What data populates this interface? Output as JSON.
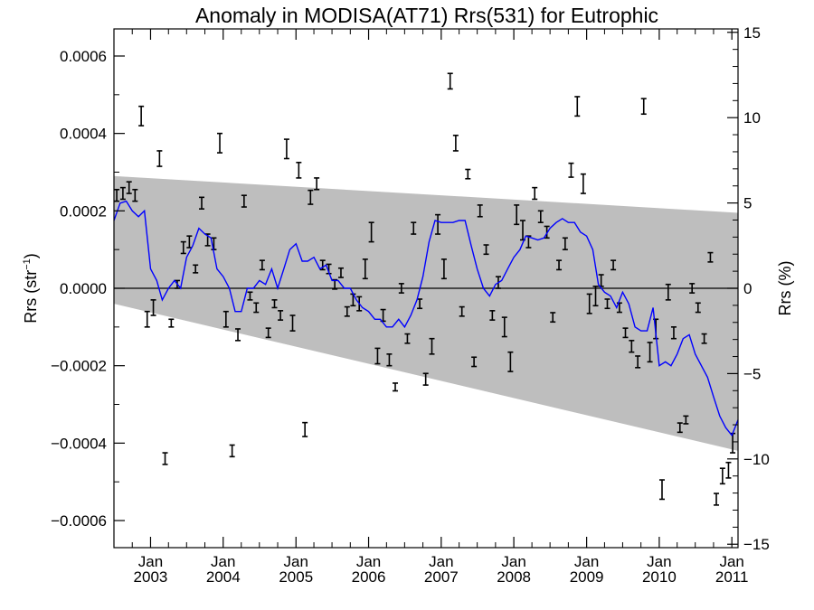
{
  "chart_data": {
    "type": "scatter",
    "title": "Anomaly in MODISA(AT71) Rrs(531) for Eutrophic",
    "ylabel_left": "Rrs (str",
    "ylabel_left_sup": "−1",
    "ylabel_left_end": ")",
    "ylabel_right": "Rrs (%)",
    "x_range": [
      "2002-07-01",
      "2011-02-01"
    ],
    "ylim_left": [
      -0.00067,
      0.00067
    ],
    "ylim_right": [
      -15.2,
      15.2
    ],
    "left_ticks": [
      {
        "value": 0.0006,
        "label": "0.0006"
      },
      {
        "value": 0.0004,
        "label": "0.0004"
      },
      {
        "value": 0.0002,
        "label": "0.0002"
      },
      {
        "value": 0.0,
        "label": "0.0000"
      },
      {
        "value": -0.0002,
        "label": "−0.0002"
      },
      {
        "value": -0.0004,
        "label": "−0.0004"
      },
      {
        "value": -0.0006,
        "label": "−0.0006"
      }
    ],
    "right_ticks": [
      {
        "value": 15,
        "label": "15"
      },
      {
        "value": 10,
        "label": "10"
      },
      {
        "value": 5,
        "label": "5"
      },
      {
        "value": 0,
        "label": "0"
      },
      {
        "value": -5,
        "label": "−5"
      },
      {
        "value": -10,
        "label": "−10"
      },
      {
        "value": -15,
        "label": "−15"
      }
    ],
    "x_ticks": [
      {
        "date": "2003-01-01",
        "month": "Jan",
        "year": "2003"
      },
      {
        "date": "2004-01-01",
        "month": "Jan",
        "year": "2004"
      },
      {
        "date": "2005-01-01",
        "month": "Jan",
        "year": "2005"
      },
      {
        "date": "2006-01-01",
        "month": "Jan",
        "year": "2006"
      },
      {
        "date": "2007-01-01",
        "month": "Jan",
        "year": "2007"
      },
      {
        "date": "2008-01-01",
        "month": "Jan",
        "year": "2008"
      },
      {
        "date": "2009-01-01",
        "month": "Jan",
        "year": "2009"
      },
      {
        "date": "2010-01-01",
        "month": "Jan",
        "year": "2010"
      },
      {
        "date": "2011-01-01",
        "month": "Jan",
        "year": "2011"
      }
    ],
    "confidence_band": {
      "color": "#bebebe",
      "upper": [
        [
          "2002-07-01",
          0.00029
        ],
        [
          "2011-02-01",
          0.000195
        ]
      ],
      "lower": [
        [
          "2002-07-01",
          -4e-05
        ],
        [
          "2011-02-01",
          -0.00042
        ]
      ]
    },
    "zero_line": 0,
    "observations": {
      "color": "#000000",
      "points": [
        [
          "2002-07-15",
          0.00024,
          1.5e-05
        ],
        [
          "2002-08-15",
          0.000245,
          1.5e-05
        ],
        [
          "2002-09-15",
          0.00026,
          1.5e-05
        ],
        [
          "2002-10-15",
          0.00024,
          1.5e-05
        ],
        [
          "2002-11-15",
          0.000445,
          2.5e-05
        ],
        [
          "2002-12-15",
          -8e-05,
          2e-05
        ],
        [
          "2003-01-15",
          -5e-05,
          2e-05
        ],
        [
          "2003-02-15",
          0.000335,
          2e-05
        ],
        [
          "2003-03-15",
          -0.00044,
          1.5e-05
        ],
        [
          "2003-04-15",
          -9e-05,
          1e-05
        ],
        [
          "2003-05-15",
          1e-05,
          1e-05
        ],
        [
          "2003-06-15",
          0.000105,
          1.5e-05
        ],
        [
          "2003-07-15",
          0.00012,
          1.5e-05
        ],
        [
          "2003-08-15",
          5e-05,
          1e-05
        ],
        [
          "2003-09-15",
          0.00022,
          1.5e-05
        ],
        [
          "2003-10-15",
          0.000125,
          1.5e-05
        ],
        [
          "2003-11-15",
          0.000115,
          1.5e-05
        ],
        [
          "2003-12-15",
          0.000375,
          2.5e-05
        ],
        [
          "2004-01-15",
          -8e-05,
          2e-05
        ],
        [
          "2004-02-15",
          -0.00042,
          1.5e-05
        ],
        [
          "2004-03-15",
          -0.00012,
          1.5e-05
        ],
        [
          "2004-04-15",
          0.000225,
          1.5e-05
        ],
        [
          "2004-05-15",
          -2e-05,
          1e-05
        ],
        [
          "2004-06-15",
          -5e-05,
          1.2e-05
        ],
        [
          "2004-07-15",
          6e-05,
          1.2e-05
        ],
        [
          "2004-08-15",
          -0.000115,
          1.2e-05
        ],
        [
          "2004-09-15",
          -4e-05,
          1e-05
        ],
        [
          "2004-10-15",
          -7e-05,
          1.2e-05
        ],
        [
          "2004-11-15",
          0.00036,
          2.5e-05
        ],
        [
          "2004-12-15",
          -9e-05,
          2e-05
        ],
        [
          "2005-01-15",
          0.000305,
          2e-05
        ],
        [
          "2005-02-15",
          -0.000365,
          1.8e-05
        ],
        [
          "2005-03-15",
          0.000235,
          1.8e-05
        ],
        [
          "2005-04-15",
          0.00027,
          1.5e-05
        ],
        [
          "2005-05-15",
          6e-05,
          1.2e-05
        ],
        [
          "2005-06-15",
          5e-05,
          1.2e-05
        ],
        [
          "2005-07-15",
          1e-05,
          1.2e-05
        ],
        [
          "2005-08-15",
          4e-05,
          1.2e-05
        ],
        [
          "2005-09-15",
          -6e-05,
          1.2e-05
        ],
        [
          "2005-10-15",
          -3e-05,
          1.5e-05
        ],
        [
          "2005-11-15",
          -4e-05,
          1.8e-05
        ],
        [
          "2005-12-15",
          5e-05,
          2.5e-05
        ],
        [
          "2006-01-15",
          0.000145,
          2.5e-05
        ],
        [
          "2006-02-15",
          -0.000175,
          2e-05
        ],
        [
          "2006-03-15",
          -7e-05,
          1.5e-05
        ],
        [
          "2006-04-15",
          -0.000185,
          1.5e-05
        ],
        [
          "2006-05-15",
          -0.000255,
          1e-05
        ],
        [
          "2006-06-15",
          0.0,
          1.2e-05
        ],
        [
          "2006-07-15",
          -0.00013,
          1.2e-05
        ],
        [
          "2006-08-15",
          0.000155,
          1.5e-05
        ],
        [
          "2006-09-15",
          -4e-05,
          1.2e-05
        ],
        [
          "2006-10-15",
          -0.000235,
          1.5e-05
        ],
        [
          "2006-11-15",
          -0.00015,
          2e-05
        ],
        [
          "2006-12-15",
          0.000165,
          2.5e-05
        ],
        [
          "2007-01-15",
          5e-05,
          2.5e-05
        ],
        [
          "2007-02-15",
          0.000535,
          2e-05
        ],
        [
          "2007-03-15",
          0.000375,
          2e-05
        ],
        [
          "2007-04-15",
          -6e-05,
          1.2e-05
        ],
        [
          "2007-05-15",
          0.000295,
          1.2e-05
        ],
        [
          "2007-06-15",
          -0.00019,
          1.2e-05
        ],
        [
          "2007-07-15",
          0.0002,
          1.5e-05
        ],
        [
          "2007-08-15",
          0.0001,
          1.2e-05
        ],
        [
          "2007-09-15",
          -7e-05,
          1.2e-05
        ],
        [
          "2007-10-15",
          1.5e-05,
          1.5e-05
        ],
        [
          "2007-11-15",
          -0.0001,
          2.5e-05
        ],
        [
          "2007-12-15",
          -0.00019,
          2.5e-05
        ],
        [
          "2008-01-15",
          0.00019,
          2.5e-05
        ],
        [
          "2008-02-15",
          0.00015,
          2.5e-05
        ],
        [
          "2008-03-15",
          0.00012,
          1.5e-05
        ],
        [
          "2008-04-15",
          0.000245,
          1.5e-05
        ],
        [
          "2008-05-15",
          0.000185,
          1.5e-05
        ],
        [
          "2008-06-15",
          0.000145,
          1.5e-05
        ],
        [
          "2008-07-15",
          -7.5e-05,
          1.2e-05
        ],
        [
          "2008-08-15",
          6e-05,
          1.2e-05
        ],
        [
          "2008-09-15",
          0.000115,
          1.5e-05
        ],
        [
          "2008-10-15",
          0.000305,
          1.8e-05
        ],
        [
          "2008-11-15",
          0.00047,
          2.5e-05
        ],
        [
          "2008-12-15",
          0.00027,
          2.5e-05
        ],
        [
          "2009-01-15",
          -4e-05,
          2.5e-05
        ],
        [
          "2009-02-15",
          -2e-05,
          2.5e-05
        ],
        [
          "2009-03-15",
          2e-05,
          1.5e-05
        ],
        [
          "2009-04-15",
          -4e-05,
          1.2e-05
        ],
        [
          "2009-05-15",
          6e-05,
          1.2e-05
        ],
        [
          "2009-06-15",
          -5e-05,
          1.2e-05
        ],
        [
          "2009-07-15",
          -0.000115,
          1.2e-05
        ],
        [
          "2009-08-15",
          -0.00015,
          1.5e-05
        ],
        [
          "2009-09-15",
          -0.00019,
          1.5e-05
        ],
        [
          "2009-10-15",
          0.00047,
          2e-05
        ],
        [
          "2009-11-15",
          -0.000165,
          2.5e-05
        ],
        [
          "2009-12-15",
          -0.000105,
          2.5e-05
        ],
        [
          "2010-01-15",
          -0.00052,
          2.5e-05
        ],
        [
          "2010-02-15",
          -1e-05,
          2e-05
        ],
        [
          "2010-03-15",
          -0.000115,
          1.5e-05
        ],
        [
          "2010-04-15",
          -0.00036,
          1.2e-05
        ],
        [
          "2010-05-15",
          -0.00034,
          1e-05
        ],
        [
          "2010-06-15",
          0.0,
          1.2e-05
        ],
        [
          "2010-07-15",
          -5e-05,
          1.2e-05
        ],
        [
          "2010-08-15",
          -0.00013,
          1.2e-05
        ],
        [
          "2010-09-15",
          8e-05,
          1.2e-05
        ],
        [
          "2010-10-15",
          -0.000545,
          1.5e-05
        ],
        [
          "2010-11-15",
          -0.000485,
          2e-05
        ],
        [
          "2010-12-15",
          -0.00047,
          2e-05
        ],
        [
          "2011-01-05",
          -0.0004,
          2.5e-05
        ]
      ]
    },
    "running_mean": {
      "color": "#0000ff",
      "points": [
        [
          "2002-07-01",
          0.000175
        ],
        [
          "2002-08-01",
          0.00022
        ],
        [
          "2002-09-01",
          0.000225
        ],
        [
          "2002-10-01",
          0.0002
        ],
        [
          "2002-11-01",
          0.000185
        ],
        [
          "2002-12-01",
          0.0002
        ],
        [
          "2003-01-01",
          5e-05
        ],
        [
          "2003-02-01",
          2e-05
        ],
        [
          "2003-03-01",
          -3e-05
        ],
        [
          "2003-04-01",
          0.0
        ],
        [
          "2003-05-01",
          2e-05
        ],
        [
          "2003-06-01",
          0.0
        ],
        [
          "2003-07-01",
          8e-05
        ],
        [
          "2003-08-01",
          0.00011
        ],
        [
          "2003-09-01",
          0.000155
        ],
        [
          "2003-10-01",
          0.00014
        ],
        [
          "2003-11-01",
          0.00013
        ],
        [
          "2003-12-01",
          5e-05
        ],
        [
          "2004-01-01",
          3e-05
        ],
        [
          "2004-02-01",
          0.0
        ],
        [
          "2004-03-01",
          -6e-05
        ],
        [
          "2004-04-01",
          -6e-05
        ],
        [
          "2004-05-01",
          0.0
        ],
        [
          "2004-06-01",
          0.0
        ],
        [
          "2004-07-01",
          2e-05
        ],
        [
          "2004-08-01",
          1e-05
        ],
        [
          "2004-09-01",
          5e-05
        ],
        [
          "2004-10-01",
          0.0
        ],
        [
          "2004-11-01",
          5e-05
        ],
        [
          "2004-12-01",
          0.0001
        ],
        [
          "2005-01-01",
          0.000115
        ],
        [
          "2005-02-01",
          7e-05
        ],
        [
          "2005-03-01",
          7e-05
        ],
        [
          "2005-04-01",
          8e-05
        ],
        [
          "2005-05-01",
          5e-05
        ],
        [
          "2005-06-01",
          6e-05
        ],
        [
          "2005-07-01",
          2e-05
        ],
        [
          "2005-08-01",
          2e-05
        ],
        [
          "2005-09-01",
          0.0
        ],
        [
          "2005-10-01",
          0.0
        ],
        [
          "2005-11-01",
          -3e-05
        ],
        [
          "2005-12-01",
          -5e-05
        ],
        [
          "2006-01-01",
          -6e-05
        ],
        [
          "2006-02-01",
          -8e-05
        ],
        [
          "2006-03-01",
          -8e-05
        ],
        [
          "2006-04-01",
          -0.0001
        ],
        [
          "2006-05-01",
          -0.0001
        ],
        [
          "2006-06-01",
          -8e-05
        ],
        [
          "2006-07-01",
          -0.0001
        ],
        [
          "2006-08-01",
          -7e-05
        ],
        [
          "2006-09-01",
          -3e-05
        ],
        [
          "2006-10-01",
          3e-05
        ],
        [
          "2006-11-01",
          0.00012
        ],
        [
          "2006-12-01",
          0.000175
        ],
        [
          "2007-01-01",
          0.00017
        ],
        [
          "2007-02-01",
          0.00017
        ],
        [
          "2007-03-01",
          0.00017
        ],
        [
          "2007-04-01",
          0.000175
        ],
        [
          "2007-05-01",
          0.000175
        ],
        [
          "2007-06-01",
          0.00011
        ],
        [
          "2007-07-01",
          5e-05
        ],
        [
          "2007-08-01",
          0.0
        ],
        [
          "2007-09-01",
          -2e-05
        ],
        [
          "2007-10-01",
          1e-05
        ],
        [
          "2007-11-01",
          2e-05
        ],
        [
          "2007-12-01",
          5e-05
        ],
        [
          "2008-01-01",
          8e-05
        ],
        [
          "2008-02-01",
          0.0001
        ],
        [
          "2008-03-01",
          0.000135
        ],
        [
          "2008-04-01",
          0.00013
        ],
        [
          "2008-05-01",
          0.000125
        ],
        [
          "2008-06-01",
          0.00013
        ],
        [
          "2008-07-01",
          0.000155
        ],
        [
          "2008-08-01",
          0.00017
        ],
        [
          "2008-09-01",
          0.00018
        ],
        [
          "2008-10-01",
          0.00017
        ],
        [
          "2008-11-01",
          0.00017
        ],
        [
          "2008-12-01",
          0.000145
        ],
        [
          "2009-01-01",
          0.000135
        ],
        [
          "2009-02-01",
          0.0001
        ],
        [
          "2009-03-01",
          1e-05
        ],
        [
          "2009-04-01",
          -1e-05
        ],
        [
          "2009-05-01",
          -2e-05
        ],
        [
          "2009-06-01",
          -5e-05
        ],
        [
          "2009-07-01",
          -1e-05
        ],
        [
          "2009-08-01",
          -4e-05
        ],
        [
          "2009-09-01",
          -0.0001
        ],
        [
          "2009-10-01",
          -0.00011
        ],
        [
          "2009-11-01",
          -0.00011
        ],
        [
          "2009-12-01",
          -5e-05
        ],
        [
          "2010-01-01",
          -0.0002
        ],
        [
          "2010-02-01",
          -0.00019
        ],
        [
          "2010-03-01",
          -0.0002
        ],
        [
          "2010-04-01",
          -0.00017
        ],
        [
          "2010-05-01",
          -0.00013
        ],
        [
          "2010-06-01",
          -0.00012
        ],
        [
          "2010-07-01",
          -0.00017
        ],
        [
          "2010-08-01",
          -0.0002
        ],
        [
          "2010-09-01",
          -0.00023
        ],
        [
          "2010-10-01",
          -0.00028
        ],
        [
          "2010-11-01",
          -0.00033
        ],
        [
          "2010-12-01",
          -0.00036
        ],
        [
          "2011-01-01",
          -0.00038
        ],
        [
          "2011-02-01",
          -0.00034
        ]
      ]
    },
    "grid": false,
    "legend": "none"
  }
}
